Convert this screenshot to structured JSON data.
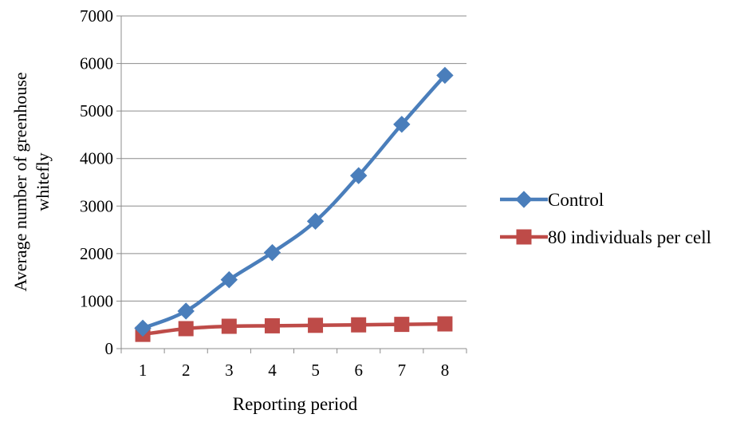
{
  "chart_data": {
    "type": "line",
    "title": "",
    "xlabel": "Reporting period",
    "ylabel": "Average number of greenhouse whitefly",
    "ylabel_lines": [
      "Average number of greenhouse",
      "whitefly"
    ],
    "categories": [
      "1",
      "2",
      "3",
      "4",
      "5",
      "6",
      "7",
      "8"
    ],
    "y_ticks": [
      "0",
      "1000",
      "2000",
      "3000",
      "4000",
      "5000",
      "6000",
      "7000"
    ],
    "ylim": [
      0,
      7000
    ],
    "grid": true,
    "legend_position": "right",
    "series": [
      {
        "name": "Control",
        "color": "#4a7ebb",
        "marker": "diamond",
        "values": [
          430,
          790,
          1450,
          2020,
          2680,
          3640,
          4720,
          5750
        ]
      },
      {
        "name": "80 individuals per cell",
        "color": "#be4b48",
        "marker": "square",
        "values": [
          300,
          420,
          470,
          480,
          490,
          500,
          510,
          520
        ]
      }
    ]
  }
}
